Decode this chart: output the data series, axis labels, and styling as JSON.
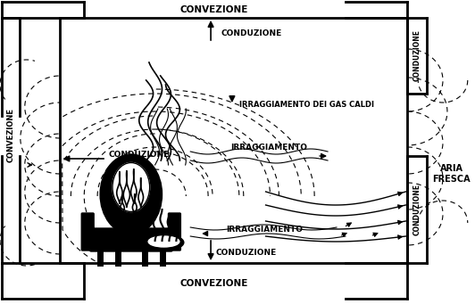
{
  "bg_color": "#ffffff",
  "line_color": "#000000",
  "text_color": "#000000",
  "convezione_top": "CONVEZIONE",
  "convezione_bottom": "CONVEZIONE",
  "convezione_left": "CONVEZIONE",
  "conduzione_top": "CONDUZIONE",
  "conduzione_bottom": "CONDUZIONE",
  "conduzione_left": "CONDUZIONE",
  "conduzione_right_top": "CONDUZIONE",
  "conduzione_right_bot": "CONDUZIONE",
  "irraggiamento_gas": "IRRAGGIAMENTO DEI GAS CALDI",
  "irraggiamento_mid": "IRRAGGIAMENTO",
  "irraggiamento_bot": "IRRAGGIAMENTO",
  "aria_fresca": "ARIA\nFRESCA"
}
